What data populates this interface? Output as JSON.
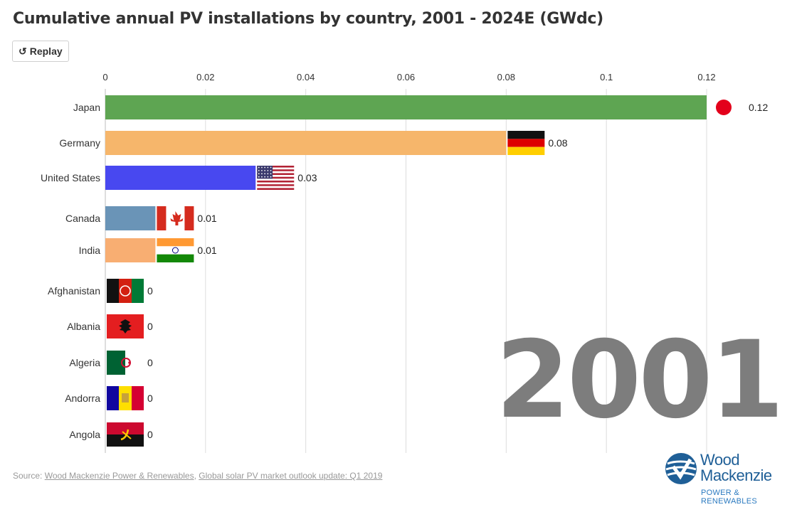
{
  "title": "Cumulative annual PV installations by country, 2001 - 2024E (GWdc)",
  "replay_button": {
    "label": "Replay",
    "icon": "replay-icon"
  },
  "year_label": "2001",
  "source": {
    "prefix": "Source: ",
    "link1": "Wood Mackenzie Power & Renewables",
    "separator": ", ",
    "link2": "Global solar PV market outlook update: Q1 2019"
  },
  "logo": {
    "line1": "Wood",
    "line2": "Mackenzie",
    "line3": "POWER & RENEWABLES"
  },
  "chart_data": {
    "type": "bar",
    "orientation": "horizontal",
    "xlim": [
      0,
      0.12
    ],
    "ticks": [
      "0",
      "0.02",
      "0.04",
      "0.06",
      "0.08",
      "0.1",
      "0.12"
    ],
    "grid": true,
    "categories": [
      "Japan",
      "Germany",
      "United States",
      "Canada",
      "India",
      "Afghanistan",
      "Albania",
      "Algeria",
      "Andorra",
      "Angola"
    ],
    "values": [
      0.12,
      0.08,
      0.03,
      0.01,
      0.01,
      0,
      0,
      0,
      0,
      0
    ],
    "value_labels": [
      "0.12",
      "0.08",
      "0.03",
      "0.01",
      "0.01",
      "0",
      "0",
      "0",
      "0",
      "0"
    ],
    "colors": [
      "#5ea552",
      "#f6b66b",
      "#4848f0",
      "#6a94b7",
      "#f8ae72",
      "#ffffff",
      "#ffffff",
      "#ffffff",
      "#ffffff",
      "#ffffff"
    ],
    "flags": [
      "japan-flag-icon",
      "germany-flag-icon",
      "united-states-flag-icon",
      "canada-flag-icon",
      "india-flag-icon",
      "afghanistan-flag-icon",
      "albania-flag-icon",
      "algeria-flag-icon",
      "andorra-flag-icon",
      "angola-flag-icon"
    ]
  }
}
